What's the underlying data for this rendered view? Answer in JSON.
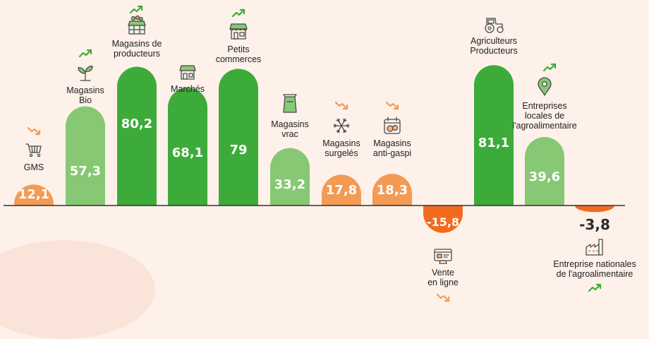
{
  "chart_data": {
    "type": "bar",
    "categories": [
      [
        "GMS"
      ],
      [
        "Magasins",
        "Bio"
      ],
      [
        "Magasins de",
        "producteurs"
      ],
      [
        "Marchés"
      ],
      [
        "Petits",
        "commerces"
      ],
      [
        "Magasins",
        "vrac"
      ],
      [
        "Magasins",
        "surgelés"
      ],
      [
        "Magasins",
        "anti-gaspi"
      ],
      [
        "Vente",
        "en ligne"
      ],
      [
        "Agriculteurs",
        "Producteurs"
      ],
      [
        "Entreprises",
        "locales de",
        "l'agroalimentaire"
      ],
      [
        "Entreprise nationales",
        "de l'agroalimentaire"
      ]
    ],
    "values": [
      12.1,
      57.3,
      80.2,
      68.1,
      79,
      33.2,
      17.8,
      18.3,
      -15.8,
      81.1,
      39.6,
      -3.8
    ],
    "value_labels": [
      "12,1",
      "57,3",
      "80,2",
      "68,1",
      "79",
      "33,2",
      "17,8",
      "18,3",
      "-15,8",
      "81,1",
      "39,6",
      "-3,8"
    ],
    "icons": [
      "cart-icon",
      "sprout-icon",
      "market-stall-icon",
      "market-icon",
      "shop-icon",
      "bulk-bag-icon",
      "snowflake-icon",
      "anti-waste-icon",
      "online-shopping-icon",
      "tractor-icon",
      "location-pin-icon",
      "factory-icon"
    ],
    "trends": [
      "down",
      "up",
      "up",
      null,
      "up",
      null,
      "down",
      "down",
      "down",
      null,
      "up",
      "up"
    ],
    "ylim": [
      -20,
      85
    ],
    "grid": false,
    "colors": {
      "strong_positive": "#3cab3a",
      "positive": "#86c874",
      "negative": "#f39a55",
      "negative_strong": "#f26b1d",
      "trend_up": "#3cab3a",
      "trend_down": "#f39a55",
      "icon": "#4a4a4a"
    },
    "bar_colors": [
      "negative",
      "positive",
      "strong_positive",
      "strong_positive",
      "strong_positive",
      "positive",
      "negative",
      "negative",
      "negative_strong",
      "strong_positive",
      "positive",
      "negative_strong"
    ]
  }
}
